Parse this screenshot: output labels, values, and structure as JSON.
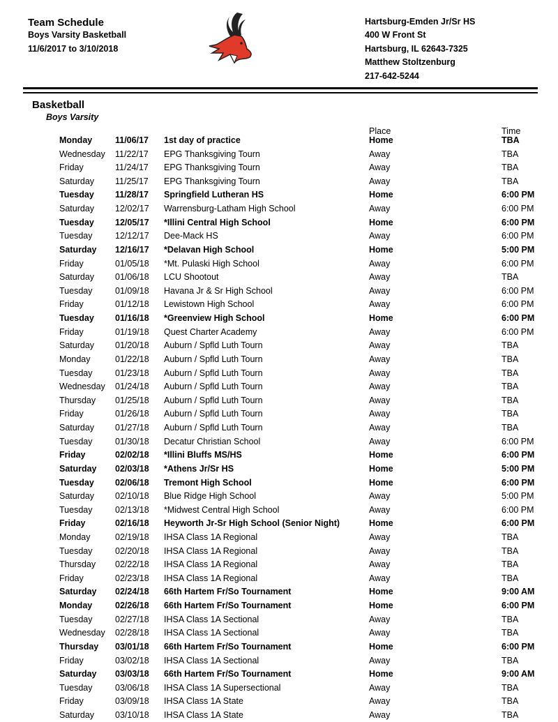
{
  "header": {
    "title": "Team Schedule",
    "team": "Boys Varsity Basketball",
    "date_range": "11/6/2017 to 3/10/2018",
    "school": "Hartsburg-Emden Jr/Sr HS",
    "address": "400 W Front St",
    "city": "Hartsburg, IL 62643-7325",
    "contact": "Matthew Stoltzenburg",
    "phone": "217-642-5244",
    "logo": "deer-mascot-logo",
    "logo_color": "#e03a2a"
  },
  "section": {
    "title": "Basketball",
    "subtitle": "Boys Varsity",
    "place_header": "Place",
    "time_header": "Time"
  },
  "rows": [
    {
      "day": "Monday",
      "date": "11/06/17",
      "opponent": "1st day of practice",
      "place": "Home",
      "time": "TBA"
    },
    {
      "day": "Wednesday",
      "date": "11/22/17",
      "opponent": "EPG Thanksgiving Tourn",
      "place": "Away",
      "time": "TBA"
    },
    {
      "day": "Friday",
      "date": "11/24/17",
      "opponent": "EPG Thanksgiving Tourn",
      "place": "Away",
      "time": "TBA"
    },
    {
      "day": "Saturday",
      "date": "11/25/17",
      "opponent": "EPG Thanksgiving Tourn",
      "place": "Away",
      "time": "TBA"
    },
    {
      "day": "Tuesday",
      "date": "11/28/17",
      "opponent": "Springfield Lutheran HS",
      "place": "Home",
      "time": "6:00 PM"
    },
    {
      "day": "Saturday",
      "date": "12/02/17",
      "opponent": "Warrensburg-Latham High School",
      "place": "Away",
      "time": "6:00 PM"
    },
    {
      "day": "Tuesday",
      "date": "12/05/17",
      "opponent": "*Illini Central High School",
      "place": "Home",
      "time": "6:00 PM"
    },
    {
      "day": "Tuesday",
      "date": "12/12/17",
      "opponent": "Dee-Mack HS",
      "place": "Away",
      "time": "6:00 PM"
    },
    {
      "day": "Saturday",
      "date": "12/16/17",
      "opponent": "*Delavan High School",
      "place": "Home",
      "time": "5:00 PM"
    },
    {
      "day": "Friday",
      "date": "01/05/18",
      "opponent": "*Mt. Pulaski High School",
      "place": "Away",
      "time": "6:00 PM"
    },
    {
      "day": "Saturday",
      "date": "01/06/18",
      "opponent": "LCU Shootout",
      "place": "Away",
      "time": "TBA"
    },
    {
      "day": "Tuesday",
      "date": "01/09/18",
      "opponent": "Havana Jr & Sr High School",
      "place": "Away",
      "time": "6:00 PM"
    },
    {
      "day": "Friday",
      "date": "01/12/18",
      "opponent": "Lewistown High School",
      "place": "Away",
      "time": "6:00 PM"
    },
    {
      "day": "Tuesday",
      "date": "01/16/18",
      "opponent": "*Greenview High School",
      "place": "Home",
      "time": "6:00 PM"
    },
    {
      "day": "Friday",
      "date": "01/19/18",
      "opponent": "Quest Charter Academy",
      "place": "Away",
      "time": "6:00 PM"
    },
    {
      "day": "Saturday",
      "date": "01/20/18",
      "opponent": "Auburn / Spfld Luth Tourn",
      "place": "Away",
      "time": "TBA"
    },
    {
      "day": "Monday",
      "date": "01/22/18",
      "opponent": "Auburn / Spfld Luth Tourn",
      "place": "Away",
      "time": "TBA"
    },
    {
      "day": "Tuesday",
      "date": "01/23/18",
      "opponent": "Auburn / Spfld Luth Tourn",
      "place": "Away",
      "time": "TBA"
    },
    {
      "day": "Wednesday",
      "date": "01/24/18",
      "opponent": "Auburn / Spfld Luth Tourn",
      "place": "Away",
      "time": "TBA"
    },
    {
      "day": "Thursday",
      "date": "01/25/18",
      "opponent": "Auburn / Spfld Luth Tourn",
      "place": "Away",
      "time": "TBA"
    },
    {
      "day": "Friday",
      "date": "01/26/18",
      "opponent": "Auburn / Spfld Luth Tourn",
      "place": "Away",
      "time": "TBA"
    },
    {
      "day": "Saturday",
      "date": "01/27/18",
      "opponent": "Auburn  / Spfld Luth Tourn",
      "place": "Away",
      "time": "TBA"
    },
    {
      "day": "Tuesday",
      "date": "01/30/18",
      "opponent": "Decatur Christian School",
      "place": "Away",
      "time": "6:00 PM"
    },
    {
      "day": "Friday",
      "date": "02/02/18",
      "opponent": "*Illini Bluffs MS/HS",
      "place": "Home",
      "time": "6:00 PM"
    },
    {
      "day": "Saturday",
      "date": "02/03/18",
      "opponent": "*Athens Jr/Sr HS",
      "place": "Home",
      "time": "5:00 PM"
    },
    {
      "day": "Tuesday",
      "date": "02/06/18",
      "opponent": "Tremont High School",
      "place": "Home",
      "time": "6:00 PM"
    },
    {
      "day": "Saturday",
      "date": "02/10/18",
      "opponent": "Blue Ridge High School",
      "place": "Away",
      "time": "5:00 PM"
    },
    {
      "day": "Tuesday",
      "date": "02/13/18",
      "opponent": "*Midwest Central High School",
      "place": "Away",
      "time": "6:00 PM"
    },
    {
      "day": "Friday",
      "date": "02/16/18",
      "opponent": "Heyworth Jr-Sr High School (Senior Night)",
      "place": "Home",
      "time": "6:00 PM"
    },
    {
      "day": "Monday",
      "date": "02/19/18",
      "opponent": "IHSA Class 1A Regional",
      "place": "Away",
      "time": "TBA"
    },
    {
      "day": "Tuesday",
      "date": "02/20/18",
      "opponent": "IHSA Class 1A Regional",
      "place": "Away",
      "time": "TBA"
    },
    {
      "day": "Thursday",
      "date": "02/22/18",
      "opponent": "IHSA Class 1A Regional",
      "place": "Away",
      "time": "TBA"
    },
    {
      "day": "Friday",
      "date": "02/23/18",
      "opponent": "IHSA Class 1A Regional",
      "place": "Away",
      "time": "TBA"
    },
    {
      "day": "Saturday",
      "date": "02/24/18",
      "opponent": "66th Hartem Fr/So Tournament",
      "place": "Home",
      "time": "9:00 AM"
    },
    {
      "day": "Monday",
      "date": "02/26/18",
      "opponent": "66th Hartem Fr/So Tournament",
      "place": "Home",
      "time": "6:00 PM"
    },
    {
      "day": "Tuesday",
      "date": "02/27/18",
      "opponent": "IHSA Class 1A Sectional",
      "place": "Away",
      "time": "TBA"
    },
    {
      "day": "Wednesday",
      "date": "02/28/18",
      "opponent": "IHSA Class 1A Sectional",
      "place": "Away",
      "time": "TBA"
    },
    {
      "day": "Thursday",
      "date": "03/01/18",
      "opponent": "66th Hartem Fr/So Tournament",
      "place": "Home",
      "time": "6:00 PM"
    },
    {
      "day": "Friday",
      "date": "03/02/18",
      "opponent": "IHSA Class 1A Sectional",
      "place": "Away",
      "time": "TBA"
    },
    {
      "day": "Saturday",
      "date": "03/03/18",
      "opponent": "66th Hartem Fr/So Tournament",
      "place": "Home",
      "time": "9:00 AM"
    },
    {
      "day": "Tuesday",
      "date": "03/06/18",
      "opponent": "IHSA Class 1A Supersectional",
      "place": "Away",
      "time": "TBA"
    },
    {
      "day": "Friday",
      "date": "03/09/18",
      "opponent": "IHSA Class 1A State",
      "place": "Away",
      "time": "TBA"
    },
    {
      "day": "Saturday",
      "date": "03/10/18",
      "opponent": "IHSA Class 1A State",
      "place": "Away",
      "time": "TBA"
    }
  ]
}
